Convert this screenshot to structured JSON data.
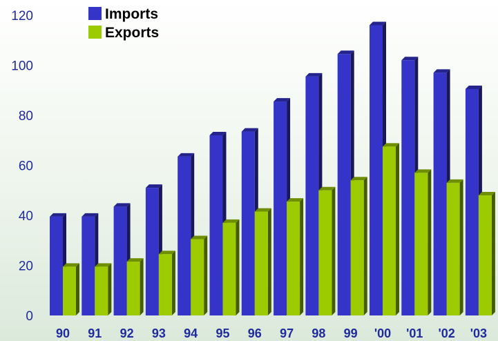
{
  "chart_data": {
    "type": "bar",
    "categories": [
      "90",
      "91",
      "92",
      "93",
      "94",
      "95",
      "96",
      "97",
      "98",
      "99",
      "'00",
      "'01",
      "'02",
      "'03"
    ],
    "series": [
      {
        "name": "Imports",
        "color": "#3434c8",
        "values": [
          39.5,
          39.5,
          43.5,
          51,
          63.5,
          72,
          73.5,
          85.5,
          95.5,
          104.5,
          116,
          102,
          97,
          90.5
        ]
      },
      {
        "name": "Exports",
        "color": "#9ccc00",
        "values": [
          19.5,
          19.5,
          21.5,
          24.5,
          30.5,
          37,
          41.5,
          45.5,
          50,
          54,
          67.5,
          57,
          53,
          48
        ]
      }
    ],
    "title": "",
    "xlabel": "",
    "ylabel": "",
    "ylim": [
      0,
      120
    ],
    "yticks": [
      0,
      20,
      40,
      60,
      80,
      100,
      120
    ],
    "grid": false,
    "legend": "top-left",
    "bar_style": "3d"
  }
}
